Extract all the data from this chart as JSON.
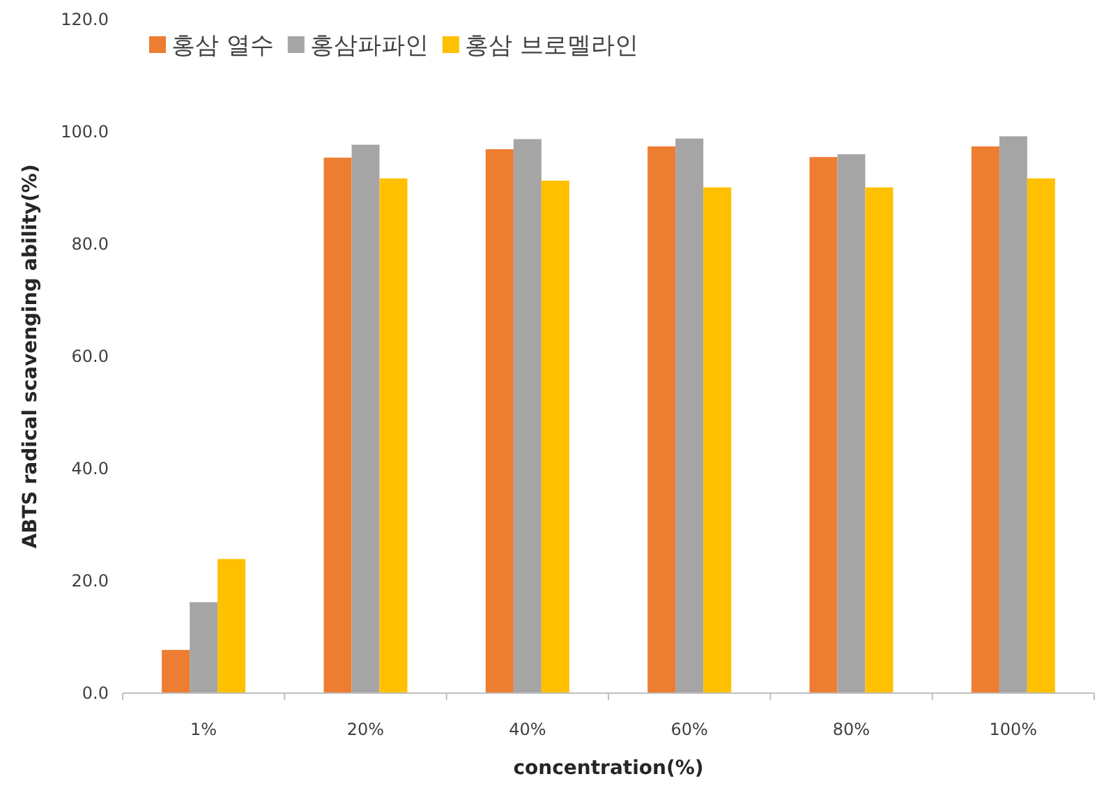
{
  "chart_data": {
    "type": "bar",
    "xlabel": "concentration(%)",
    "ylabel": "ABTS radical scavenging ability(%)",
    "categories": [
      "1%",
      "20%",
      "40%",
      "60%",
      "80%",
      "100%"
    ],
    "series": [
      {
        "name": "홍삼 열수",
        "color": "#ed7d31",
        "values": [
          7.7,
          95.4,
          96.9,
          97.4,
          95.5,
          97.4
        ]
      },
      {
        "name": "홍삼파파인",
        "color": "#a5a5a5",
        "values": [
          16.2,
          97.7,
          98.7,
          98.8,
          96.0,
          99.2
        ]
      },
      {
        "name": "홍삼 브로멜라인",
        "color": "#ffc000",
        "values": [
          23.9,
          91.7,
          91.3,
          90.1,
          90.1,
          91.7
        ]
      }
    ],
    "ylim": [
      0,
      120
    ],
    "yticks": [
      {
        "value": 0,
        "label": "0.0"
      },
      {
        "value": 20,
        "label": "20.0"
      },
      {
        "value": 40,
        "label": "40.0"
      },
      {
        "value": 60,
        "label": "60.0"
      },
      {
        "value": 80,
        "label": "80.0"
      },
      {
        "value": 100,
        "label": "100.0"
      },
      {
        "value": 120,
        "label": "120.0"
      }
    ],
    "grid": false,
    "legend": "top left"
  }
}
